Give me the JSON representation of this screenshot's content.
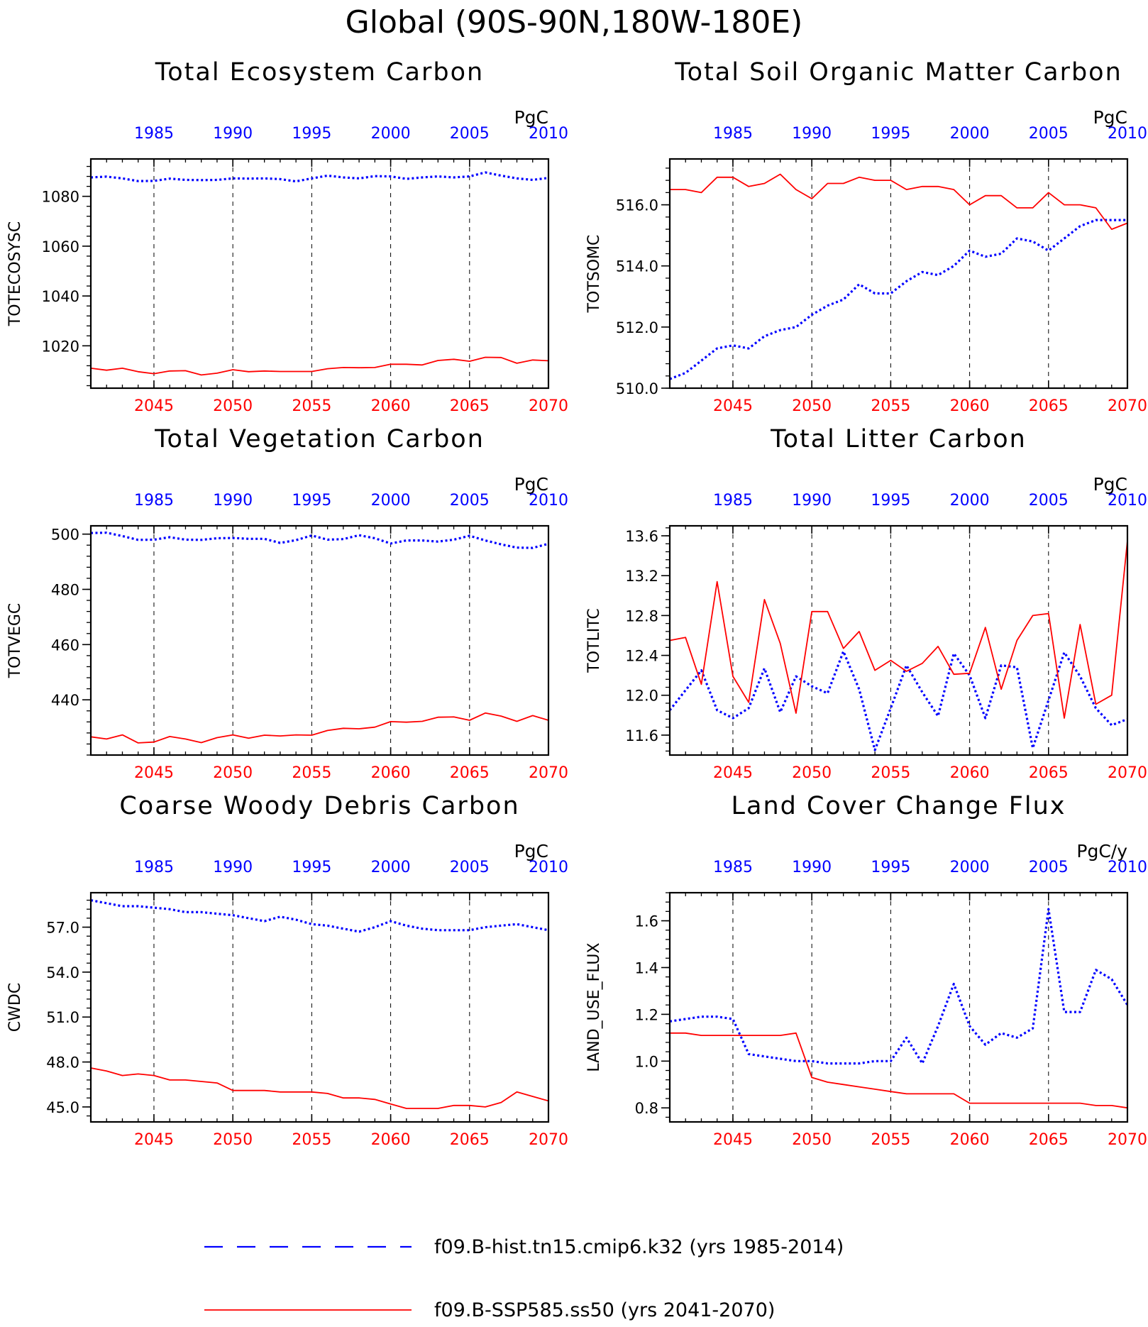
{
  "title": "Global (90S-90N,180W-180E)",
  "colors": {
    "hist": "#0000ff",
    "ssp": "#ff0000",
    "axis": "#000000"
  },
  "legend": [
    {
      "label": "f09.B-hist.tn15.cmip6.k32 (yrs 1985-2014)",
      "color": "#0000ff",
      "style": "dashed"
    },
    {
      "label": "f09.B-SSP585.ss50 (yrs 2041-2070)",
      "color": "#ff0000",
      "style": "solid"
    }
  ],
  "chart_data": [
    {
      "type": "line",
      "title": "Total Ecosystem Carbon",
      "ylabel": "TOTECOSYSC",
      "units": "PgC",
      "ylim": [
        1003,
        1095
      ],
      "yticks": [
        1020,
        1040,
        1060,
        1080
      ],
      "ytick_labels": [
        "1020",
        "1040",
        "1060",
        "1080"
      ],
      "xlim": [
        2041,
        2070
      ],
      "x_bottom_ticks": [
        2045,
        2050,
        2055,
        2060,
        2065,
        2070
      ],
      "x_top_ticks": [
        "1985",
        "1990",
        "1995",
        "2000",
        "2005",
        "2010"
      ],
      "x": [
        2041,
        2042,
        2043,
        2044,
        2045,
        2046,
        2047,
        2048,
        2049,
        2050,
        2051,
        2052,
        2053,
        2054,
        2055,
        2056,
        2057,
        2058,
        2059,
        2060,
        2061,
        2062,
        2063,
        2064,
        2065,
        2066,
        2067,
        2068,
        2069,
        2070
      ],
      "series": [
        {
          "values": [
            1087.6,
            1087.9,
            1087.2,
            1086.1,
            1086.2,
            1087.1,
            1086.6,
            1086.5,
            1086.6,
            1087.2,
            1087.1,
            1087.2,
            1086.9,
            1086.0,
            1087.2,
            1088.3,
            1087.6,
            1087.2,
            1088.1,
            1088.0,
            1087.0,
            1087.6,
            1088.0,
            1087.6,
            1088.0,
            1089.6,
            1088.3,
            1087.2,
            1086.6,
            1087.4
          ]
        },
        {
          "values": [
            1011.0,
            1010.2,
            1011.0,
            1009.6,
            1008.8,
            1009.9,
            1010.0,
            1008.3,
            1009.0,
            1010.4,
            1009.6,
            1009.9,
            1009.7,
            1009.7,
            1009.7,
            1010.8,
            1011.3,
            1011.2,
            1011.3,
            1012.6,
            1012.6,
            1012.3,
            1014.1,
            1014.6,
            1013.8,
            1015.4,
            1015.3,
            1013.0,
            1014.3,
            1014.0
          ]
        }
      ]
    },
    {
      "type": "line",
      "title": "Total Soil Organic Matter Carbon",
      "ylabel": "TOTSOMC",
      "units": "PgC",
      "ylim": [
        510.0,
        517.5
      ],
      "yticks": [
        510.0,
        512.0,
        514.0,
        516.0
      ],
      "ytick_labels": [
        "510.0",
        "512.0",
        "514.0",
        "516.0"
      ],
      "xlim": [
        2041,
        2070
      ],
      "x_bottom_ticks": [
        2045,
        2050,
        2055,
        2060,
        2065,
        2070
      ],
      "x_top_ticks": [
        "1985",
        "1990",
        "1995",
        "2000",
        "2005",
        "2010"
      ],
      "x": [
        2041,
        2042,
        2043,
        2044,
        2045,
        2046,
        2047,
        2048,
        2049,
        2050,
        2051,
        2052,
        2053,
        2054,
        2055,
        2056,
        2057,
        2058,
        2059,
        2060,
        2061,
        2062,
        2063,
        2064,
        2065,
        2066,
        2067,
        2068,
        2069,
        2070
      ],
      "series": [
        {
          "values": [
            510.3,
            510.5,
            510.9,
            511.3,
            511.4,
            511.3,
            511.7,
            511.9,
            512.0,
            512.4,
            512.7,
            512.9,
            513.4,
            513.1,
            513.1,
            513.5,
            513.8,
            513.7,
            514.0,
            514.5,
            514.3,
            514.4,
            514.9,
            514.8,
            514.5,
            514.9,
            515.3,
            515.5,
            515.5,
            515.5
          ]
        },
        {
          "values": [
            516.5,
            516.5,
            516.4,
            516.9,
            516.9,
            516.6,
            516.7,
            517.0,
            516.5,
            516.2,
            516.7,
            516.7,
            516.9,
            516.8,
            516.8,
            516.5,
            516.6,
            516.6,
            516.5,
            516.0,
            516.3,
            516.3,
            515.9,
            515.9,
            516.4,
            516.0,
            516.0,
            515.9,
            515.2,
            515.4
          ]
        }
      ]
    },
    {
      "type": "line",
      "title": "Total Vegetation Carbon",
      "ylabel": "TOTVEGC",
      "units": "PgC",
      "ylim": [
        420,
        503
      ],
      "yticks": [
        440,
        460,
        480,
        500
      ],
      "ytick_labels": [
        "440",
        "460",
        "480",
        "500"
      ],
      "xlim": [
        2041,
        2070
      ],
      "x_bottom_ticks": [
        2045,
        2050,
        2055,
        2060,
        2065,
        2070
      ],
      "x_top_ticks": [
        "1985",
        "1990",
        "1995",
        "2000",
        "2005",
        "2010"
      ],
      "x": [
        2041,
        2042,
        2043,
        2044,
        2045,
        2046,
        2047,
        2048,
        2049,
        2050,
        2051,
        2052,
        2053,
        2054,
        2055,
        2056,
        2057,
        2058,
        2059,
        2060,
        2061,
        2062,
        2063,
        2064,
        2065,
        2066,
        2067,
        2068,
        2069,
        2070
      ],
      "series": [
        {
          "values": [
            500.4,
            500.5,
            499.3,
            497.9,
            498.0,
            498.9,
            498.0,
            497.9,
            498.5,
            498.6,
            498.3,
            498.3,
            496.8,
            497.8,
            499.5,
            498.0,
            498.2,
            499.6,
            498.5,
            496.6,
            497.7,
            497.7,
            497.3,
            498.0,
            499.4,
            497.7,
            496.3,
            495.1,
            495.0,
            496.5
          ]
        },
        {
          "values": [
            426.6,
            425.8,
            427.3,
            424.4,
            424.7,
            426.7,
            425.8,
            424.5,
            426.3,
            427.3,
            426.1,
            427.2,
            426.9,
            427.3,
            427.2,
            428.9,
            429.7,
            429.5,
            430.1,
            432.1,
            431.9,
            432.2,
            433.7,
            433.8,
            432.6,
            435.2,
            434.1,
            432.2,
            434.3,
            432.6
          ]
        }
      ]
    },
    {
      "type": "line",
      "title": "Total Litter Carbon",
      "ylabel": "TOTLITC",
      "units": "PgC",
      "ylim": [
        11.4,
        13.7
      ],
      "yticks": [
        11.6,
        12.0,
        12.4,
        12.8,
        13.2,
        13.6
      ],
      "ytick_labels": [
        "11.6",
        "12.0",
        "12.4",
        "12.8",
        "13.2",
        "13.6"
      ],
      "xlim": [
        2041,
        2070
      ],
      "x_bottom_ticks": [
        2045,
        2050,
        2055,
        2060,
        2065,
        2070
      ],
      "x_top_ticks": [
        "1985",
        "1990",
        "1995",
        "2000",
        "2005",
        "2010"
      ],
      "x": [
        2041,
        2042,
        2043,
        2044,
        2045,
        2046,
        2047,
        2048,
        2049,
        2050,
        2051,
        2052,
        2053,
        2054,
        2055,
        2056,
        2057,
        2058,
        2059,
        2060,
        2061,
        2062,
        2063,
        2064,
        2065,
        2066,
        2067,
        2068,
        2069,
        2070
      ],
      "series": [
        {
          "values": [
            11.85,
            12.05,
            12.25,
            11.85,
            11.77,
            11.87,
            12.27,
            11.83,
            12.19,
            12.09,
            12.02,
            12.44,
            12.06,
            11.45,
            11.87,
            12.3,
            12.03,
            11.79,
            12.42,
            12.2,
            11.77,
            12.3,
            12.28,
            11.47,
            11.95,
            12.43,
            12.19,
            11.87,
            11.7,
            11.76
          ]
        },
        {
          "values": [
            12.55,
            12.58,
            12.11,
            13.14,
            12.19,
            11.93,
            12.96,
            12.52,
            11.82,
            12.84,
            12.84,
            12.47,
            12.64,
            12.25,
            12.35,
            12.24,
            12.32,
            12.49,
            12.21,
            12.22,
            12.68,
            12.06,
            12.55,
            12.8,
            12.82,
            11.77,
            12.71,
            11.91,
            12.0,
            13.55
          ]
        }
      ]
    },
    {
      "type": "line",
      "title": "Coarse Woody Debris Carbon",
      "ylabel": "CWDC",
      "units": "PgC",
      "ylim": [
        44.0,
        59.3
      ],
      "yticks": [
        45.0,
        48.0,
        51.0,
        54.0,
        57.0
      ],
      "ytick_labels": [
        "45.0",
        "48.0",
        "51.0",
        "54.0",
        "57.0"
      ],
      "xlim": [
        2041,
        2070
      ],
      "x_bottom_ticks": [
        2045,
        2050,
        2055,
        2060,
        2065,
        2070
      ],
      "x_top_ticks": [
        "1985",
        "1990",
        "1995",
        "2000",
        "2005",
        "2010"
      ],
      "x": [
        2041,
        2042,
        2043,
        2044,
        2045,
        2046,
        2047,
        2048,
        2049,
        2050,
        2051,
        2052,
        2053,
        2054,
        2055,
        2056,
        2057,
        2058,
        2059,
        2060,
        2061,
        2062,
        2063,
        2064,
        2065,
        2066,
        2067,
        2068,
        2069,
        2070
      ],
      "series": [
        {
          "values": [
            58.8,
            58.6,
            58.4,
            58.4,
            58.3,
            58.2,
            58.0,
            58.0,
            57.9,
            57.8,
            57.6,
            57.4,
            57.7,
            57.5,
            57.2,
            57.1,
            56.9,
            56.7,
            57.0,
            57.4,
            57.1,
            56.9,
            56.8,
            56.8,
            56.8,
            57.0,
            57.1,
            57.2,
            57.0,
            56.8
          ]
        },
        {
          "values": [
            47.6,
            47.4,
            47.1,
            47.2,
            47.1,
            46.8,
            46.8,
            46.7,
            46.6,
            46.1,
            46.1,
            46.1,
            46.0,
            46.0,
            46.0,
            45.9,
            45.6,
            45.6,
            45.5,
            45.2,
            44.9,
            44.9,
            44.9,
            45.1,
            45.1,
            45.0,
            45.3,
            46.0,
            45.7,
            45.4
          ]
        }
      ]
    },
    {
      "type": "line",
      "title": "Land Cover Change Flux",
      "ylabel": "LAND_USE_FLUX",
      "units": "PgC/y",
      "ylim": [
        0.74,
        1.72
      ],
      "yticks": [
        0.8,
        1.0,
        1.2,
        1.4,
        1.6
      ],
      "ytick_labels": [
        "0.8",
        "1.0",
        "1.2",
        "1.4",
        "1.6"
      ],
      "xlim": [
        2041,
        2070
      ],
      "x_bottom_ticks": [
        2045,
        2050,
        2055,
        2060,
        2065,
        2070
      ],
      "x_top_ticks": [
        "1985",
        "1990",
        "1995",
        "2000",
        "2005",
        "2010"
      ],
      "x": [
        2041,
        2042,
        2043,
        2044,
        2045,
        2046,
        2047,
        2048,
        2049,
        2050,
        2051,
        2052,
        2053,
        2054,
        2055,
        2056,
        2057,
        2058,
        2059,
        2060,
        2061,
        2062,
        2063,
        2064,
        2065,
        2066,
        2067,
        2068,
        2069,
        2070
      ],
      "series": [
        {
          "values": [
            1.17,
            1.18,
            1.19,
            1.19,
            1.18,
            1.03,
            1.02,
            1.01,
            1.0,
            1.0,
            0.99,
            0.99,
            0.99,
            1.0,
            1.0,
            1.1,
            0.99,
            1.15,
            1.33,
            1.15,
            1.07,
            1.12,
            1.1,
            1.14,
            1.65,
            1.21,
            1.21,
            1.39,
            1.35,
            1.24
          ]
        },
        {
          "values": [
            1.12,
            1.12,
            1.11,
            1.11,
            1.11,
            1.11,
            1.11,
            1.11,
            1.12,
            0.93,
            0.91,
            0.9,
            0.89,
            0.88,
            0.87,
            0.86,
            0.86,
            0.86,
            0.86,
            0.82,
            0.82,
            0.82,
            0.82,
            0.82,
            0.82,
            0.82,
            0.82,
            0.81,
            0.81,
            0.8
          ]
        }
      ]
    }
  ]
}
